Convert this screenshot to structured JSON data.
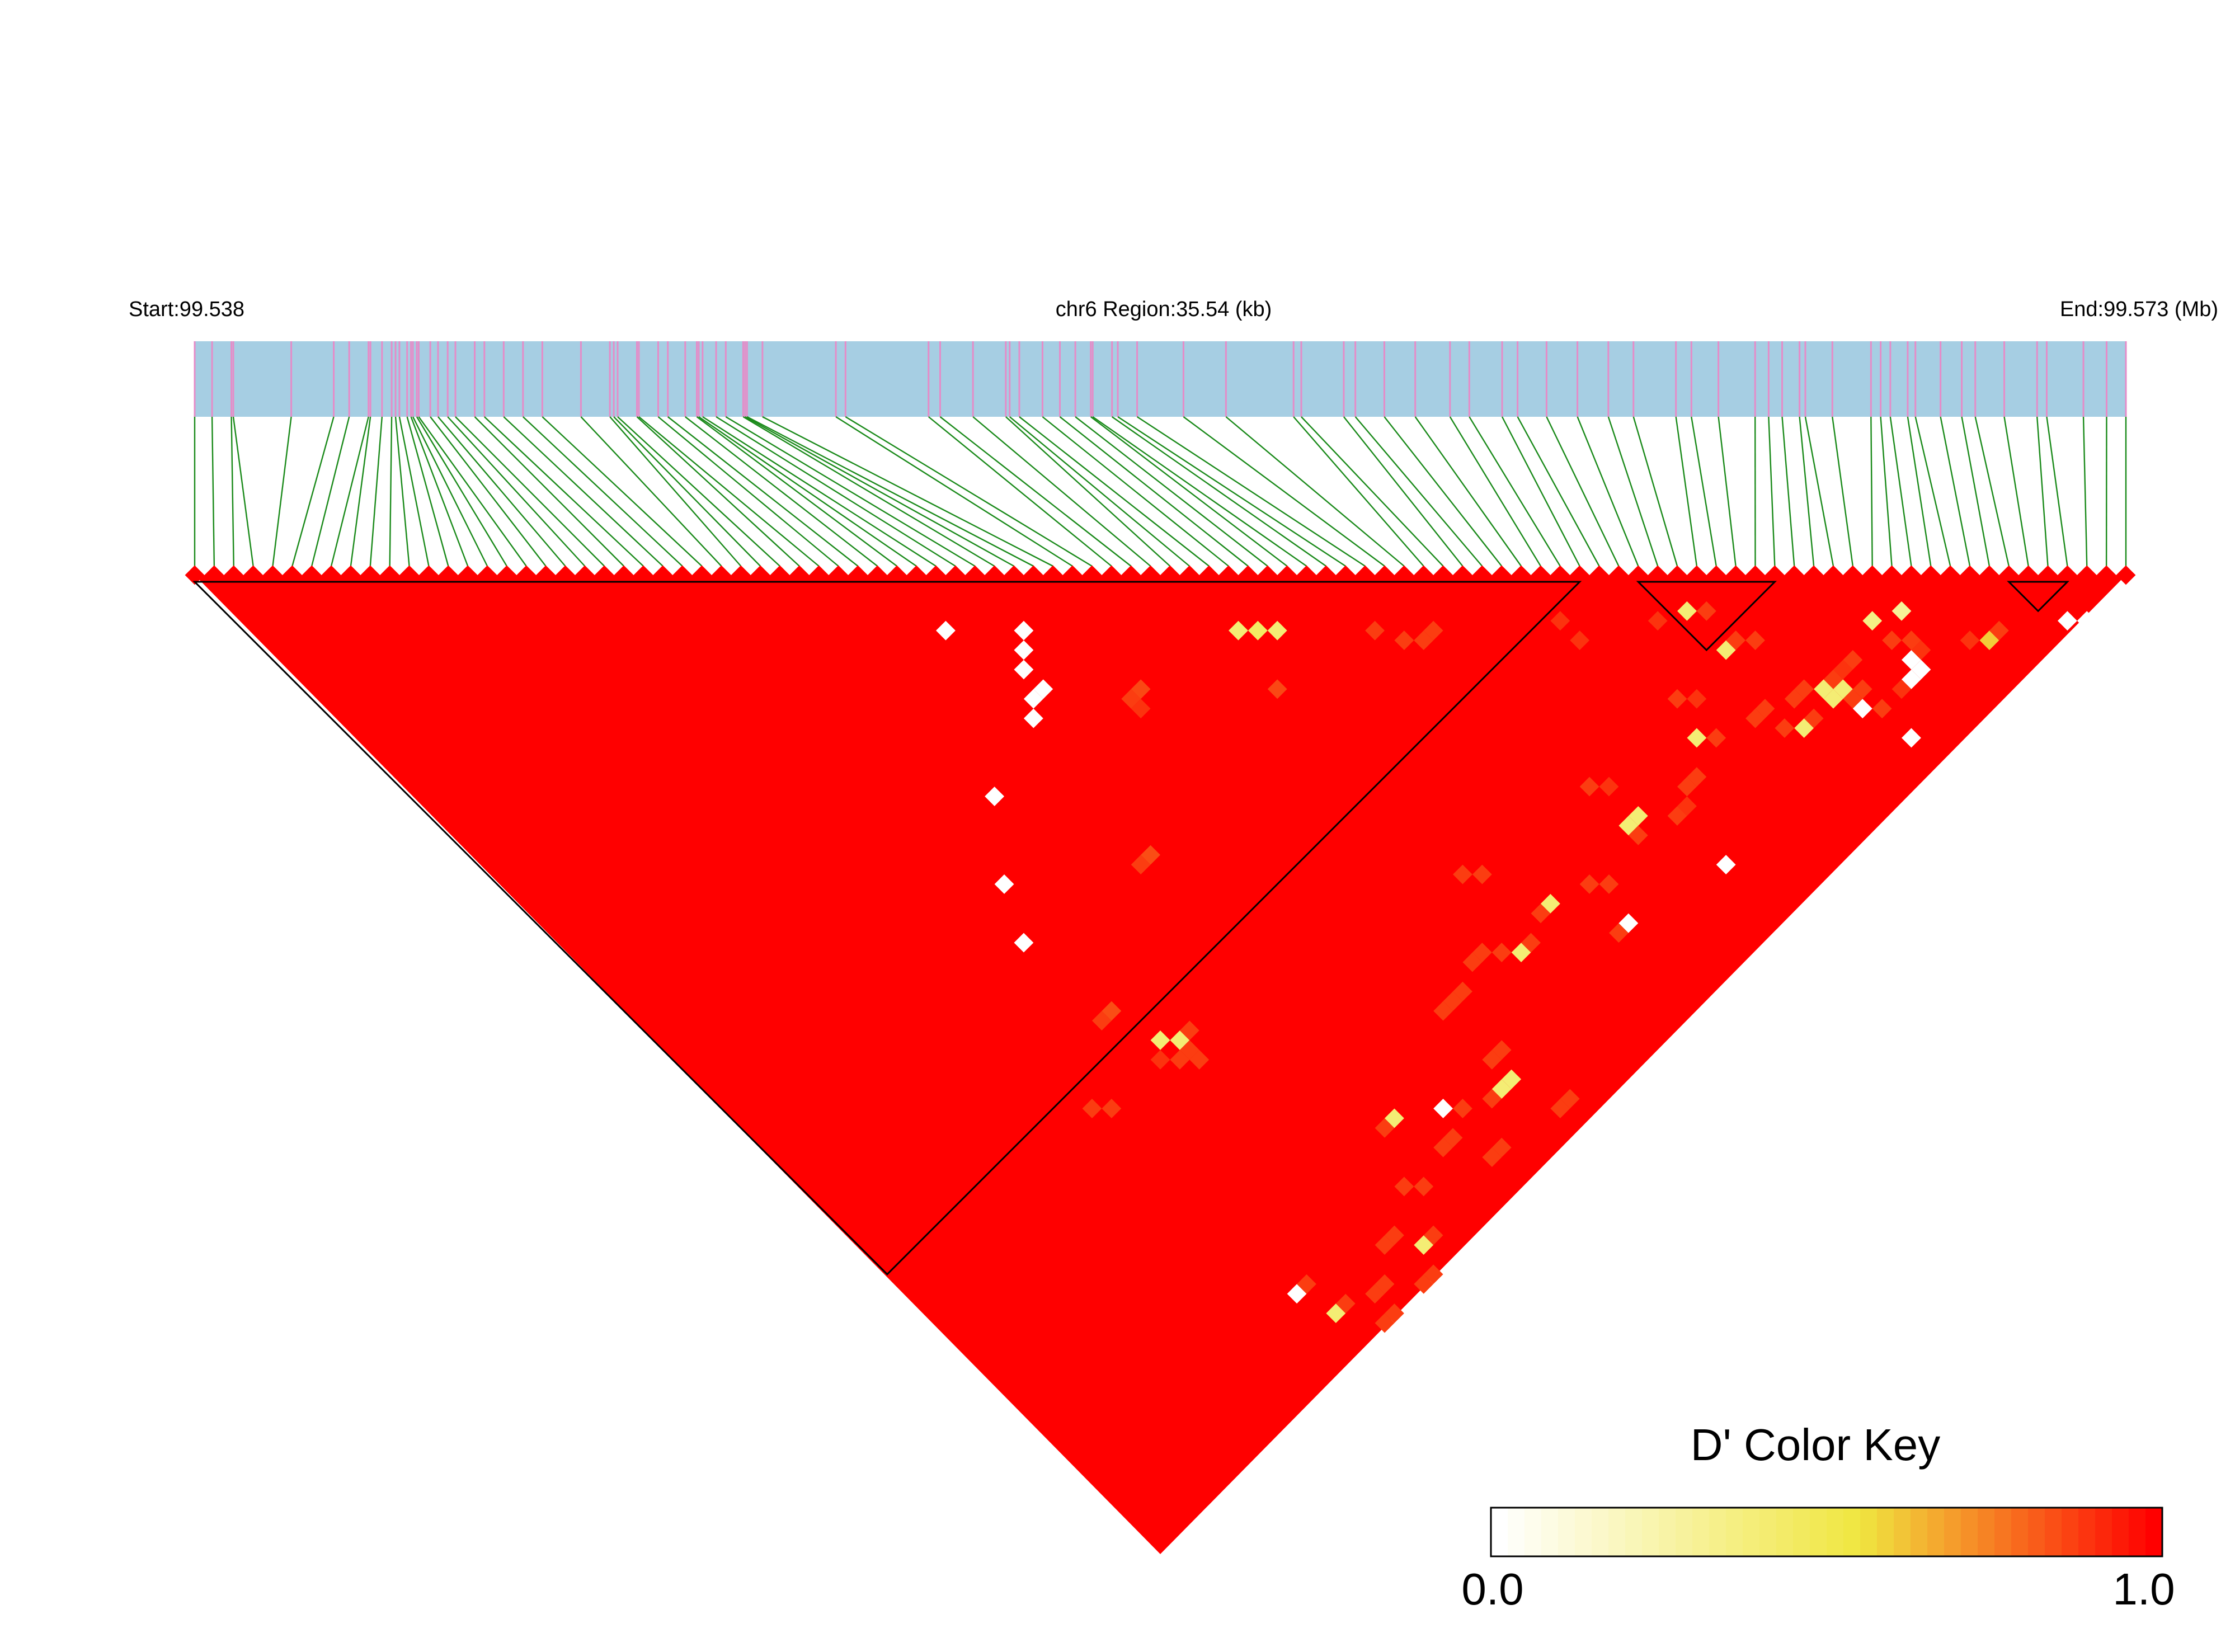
{
  "chart_data": {
    "type": "heatmap",
    "subtype": "linkage-disequilibrium-triangle",
    "start_label": "Start:99.538",
    "region_label": "chr6 Region:35.54 (kb)",
    "end_label": "End:99.573 (Mb)",
    "region_start_mb": 99.538,
    "region_end_mb": 99.573,
    "color_key": {
      "title": "D' Color Key",
      "min_label": "0.0",
      "max_label": "1.0",
      "min": 0.0,
      "max": 1.0,
      "colors": [
        "#ffffff",
        "#f0e640",
        "#ff0000"
      ]
    },
    "background_value": 1.0,
    "snp_count": 100,
    "snp_positions": [
      0.0,
      0.009,
      0.019,
      0.05,
      0.072,
      0.091,
      0.104,
      0.112,
      0.113,
      0.116,
      0.126,
      0.131,
      0.135,
      0.145,
      0.217,
      0.219,
      0.229,
      0.24,
      0.254,
      0.261,
      0.263,
      0.27,
      0.284,
      0.286,
      0.294,
      0.332,
      0.337,
      0.38,
      0.386,
      0.403,
      0.42,
      0.422,
      0.427,
      0.439,
      0.448,
      0.456,
      0.464,
      0.465,
      0.475,
      0.478,
      0.488,
      0.512,
      0.534,
      0.569,
      0.573,
      0.595,
      0.601,
      0.616,
      0.632,
      0.65,
      0.66,
      0.677,
      0.685,
      0.7,
      0.716,
      0.732,
      0.745,
      0.767,
      0.775,
      0.789,
      0.808,
      0.815,
      0.822,
      0.831,
      0.834,
      0.848,
      0.868,
      0.873,
      0.878,
      0.887,
      0.891,
      0.904,
      0.915,
      0.922,
      0.937,
      0.954,
      0.959,
      0.978,
      0.99,
      1.0,
      0.02,
      0.08,
      0.09,
      0.097,
      0.102,
      0.106,
      0.11,
      0.115,
      0.122,
      0.15,
      0.16,
      0.17,
      0.18,
      0.2,
      0.215,
      0.23,
      0.245,
      0.26,
      0.275,
      0.285
    ],
    "blocks": [
      {
        "from": 0,
        "to": 71
      },
      {
        "from": 74,
        "to": 81
      },
      {
        "from": 93,
        "to": 96
      }
    ],
    "low_cells": [
      [
        42,
        54,
        0.88
      ],
      [
        42,
        55,
        0.9
      ],
      [
        43,
        54,
        0.86
      ],
      [
        51,
        56,
        0.4
      ],
      [
        52,
        57,
        0.45
      ],
      [
        53,
        58,
        0.4
      ],
      [
        50,
        61,
        0.86
      ],
      [
        58,
        63,
        0.88
      ],
      [
        34,
        63,
        0.88
      ],
      [
        35,
        63,
        0.85
      ],
      [
        59,
        65,
        0.88
      ],
      [
        60,
        66,
        0.88
      ],
      [
        61,
        66,
        0.88
      ],
      [
        24,
        69,
        0.88
      ],
      [
        25,
        69,
        0.85
      ],
      [
        25,
        74,
        0.9
      ],
      [
        26,
        73,
        0.4
      ],
      [
        27,
        74,
        0.4
      ],
      [
        26,
        75,
        0.88
      ],
      [
        27,
        75,
        0.88
      ],
      [
        28,
        74,
        0.88
      ],
      [
        27,
        76,
        0.88
      ],
      [
        19,
        73,
        0.88
      ],
      [
        20,
        74,
        0.88
      ],
      [
        68,
        72,
        0.9
      ],
      [
        68,
        74,
        0.9
      ],
      [
        84,
        88,
        0.35
      ],
      [
        86,
        89,
        0.3
      ],
      [
        84,
        90,
        0.88
      ],
      [
        85,
        91,
        0.88
      ],
      [
        84,
        92,
        0.0
      ],
      [
        85,
        92,
        0.9
      ],
      [
        80,
        96,
        0.0
      ],
      [
        73,
        77,
        0.9
      ],
      [
        75,
        78,
        0.4
      ],
      [
        76,
        79,
        0.88
      ],
      [
        75,
        82,
        0.4
      ],
      [
        76,
        82,
        0.88
      ],
      [
        77,
        83,
        0.88
      ],
      [
        70,
        82,
        0.88
      ],
      [
        71,
        83,
        0.9
      ],
      [
        69,
        85,
        0.4
      ],
      [
        70,
        86,
        0.88
      ],
      [
        73,
        87,
        0.88
      ],
      [
        74,
        87,
        0.88
      ],
      [
        64,
        88,
        0.88
      ],
      [
        65,
        88,
        0.9
      ],
      [
        76,
        88,
        0.88
      ],
      [
        77,
        88,
        0.88
      ],
      [
        79,
        89,
        0.88
      ],
      [
        80,
        89,
        0.9
      ],
      [
        81,
        89,
        0.88
      ],
      [
        78,
        89,
        0.4
      ],
      [
        79,
        90,
        0.4
      ],
      [
        78,
        90,
        0.4
      ],
      [
        74,
        89,
        0.88
      ],
      [
        75,
        90,
        0.4
      ],
      [
        76,
        90,
        0.88
      ],
      [
        79,
        91,
        0.88
      ],
      [
        80,
        91,
        0.88
      ],
      [
        79,
        92,
        0.0
      ],
      [
        80,
        93,
        0.88
      ],
      [
        82,
        93,
        0.9
      ],
      [
        83,
        93,
        0.0
      ],
      [
        84,
        93,
        0.0
      ],
      [
        88,
        94,
        0.9
      ],
      [
        89,
        95,
        0.6
      ],
      [
        90,
        95,
        0.88
      ],
      [
        94,
        98,
        0.0
      ],
      [
        95,
        99,
        0.0
      ],
      [
        61,
        82,
        0.88
      ],
      [
        62,
        83,
        0.9
      ],
      [
        61,
        86,
        0.4
      ],
      [
        62,
        86,
        0.4
      ],
      [
        61,
        87,
        0.88
      ],
      [
        66,
        87,
        0.88
      ],
      [
        67,
        87,
        0.88
      ],
      [
        64,
        93,
        0.0
      ],
      [
        50,
        80,
        0.88
      ],
      [
        51,
        81,
        0.88
      ],
      [
        56,
        87,
        0.88
      ],
      [
        57,
        88,
        0.88
      ],
      [
        55,
        91,
        0.88
      ],
      [
        56,
        91,
        0.0
      ],
      [
        52,
        86,
        0.88
      ],
      [
        53,
        86,
        0.4
      ],
      [
        49,
        87,
        0.4
      ],
      [
        50,
        87,
        0.88
      ],
      [
        46,
        85,
        0.88
      ],
      [
        47,
        85,
        0.88
      ],
      [
        48,
        86,
        0.88
      ],
      [
        42,
        86,
        0.88
      ],
      [
        43,
        86,
        0.88
      ],
      [
        44,
        86,
        0.88
      ],
      [
        42,
        91,
        0.88
      ],
      [
        43,
        91,
        0.88
      ],
      [
        41,
        93,
        0.4
      ],
      [
        42,
        93,
        0.4
      ],
      [
        40,
        93,
        0.88
      ],
      [
        43,
        97,
        0.88
      ],
      [
        44,
        97,
        0.88
      ],
      [
        33,
        89,
        0.88
      ],
      [
        34,
        89,
        0.4
      ],
      [
        37,
        91,
        0.0
      ],
      [
        38,
        92,
        0.88
      ],
      [
        35,
        93,
        0.88
      ],
      [
        36,
        93,
        0.88
      ],
      [
        31,
        93,
        0.88
      ],
      [
        32,
        94,
        0.88
      ],
      [
        37,
        96,
        0.88
      ],
      [
        38,
        96,
        0.88
      ],
      [
        27,
        95,
        0.88
      ],
      [
        28,
        95,
        0.88
      ],
      [
        29,
        97,
        0.4
      ],
      [
        30,
        97,
        0.88
      ],
      [
        24,
        97,
        0.88
      ],
      [
        25,
        97,
        0.88
      ],
      [
        20,
        93,
        0.0
      ],
      [
        21,
        93,
        0.88
      ],
      [
        21,
        96,
        0.4
      ],
      [
        22,
        96,
        0.88
      ],
      [
        23,
        99,
        0.88
      ],
      [
        24,
        99,
        0.88
      ],
      [
        27,
        99,
        0.88
      ],
      [
        28,
        99,
        0.88
      ]
    ],
    "missing_boundary_cells": [
      [
        24,
        61
      ],
      [
        26,
        57
      ],
      [
        30,
        52
      ],
      [
        36,
        41
      ],
      [
        36,
        50
      ],
      [
        37,
        49
      ],
      [
        38,
        47
      ],
      [
        38,
        49
      ],
      [
        39,
        46
      ],
      [
        40,
        45
      ]
    ]
  }
}
